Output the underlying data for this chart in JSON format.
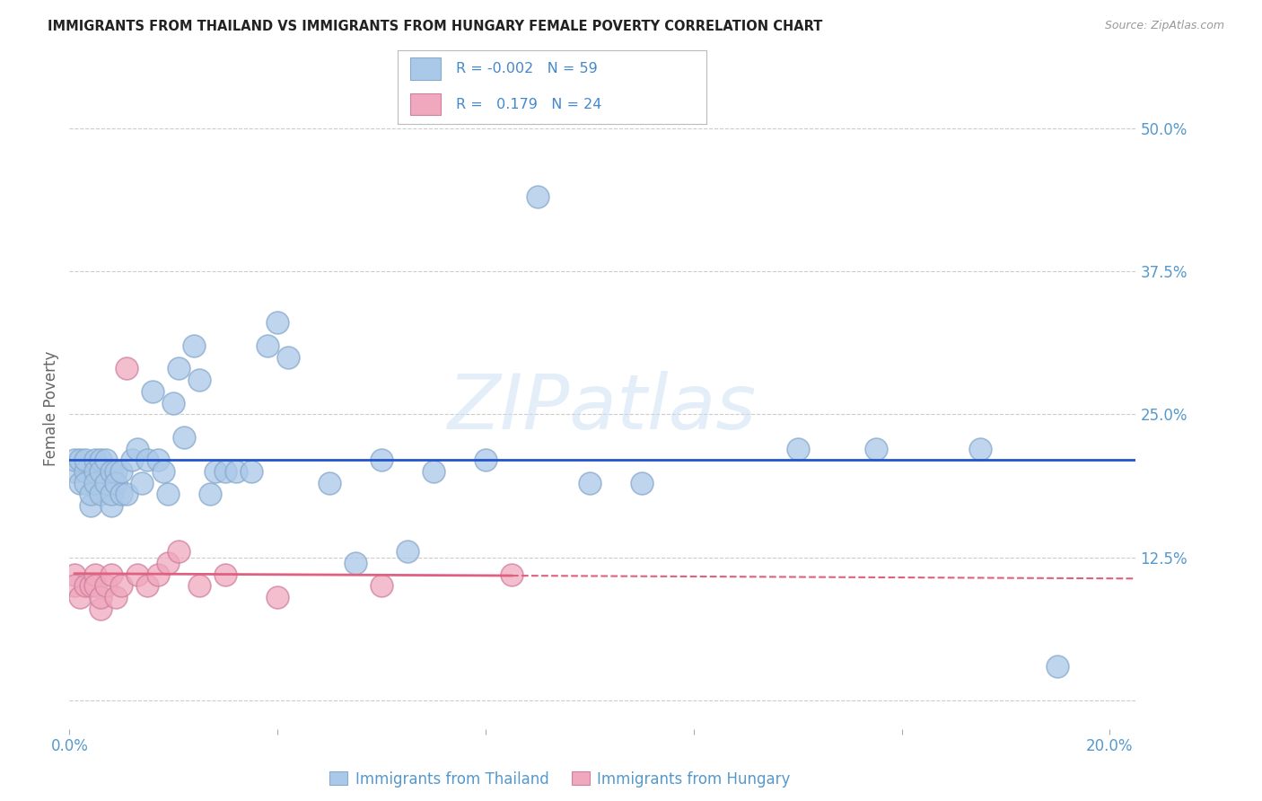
{
  "title": "IMMIGRANTS FROM THAILAND VS IMMIGRANTS FROM HUNGARY FEMALE POVERTY CORRELATION CHART",
  "source": "Source: ZipAtlas.com",
  "ylabel": "Female Poverty",
  "xlim": [
    0.0,
    0.205
  ],
  "ylim": [
    -0.025,
    0.535
  ],
  "yticks": [
    0.0,
    0.125,
    0.25,
    0.375,
    0.5
  ],
  "ytick_labels": [
    "",
    "12.5%",
    "25.0%",
    "37.5%",
    "50.0%"
  ],
  "xticks": [
    0.0,
    0.04,
    0.08,
    0.12,
    0.16,
    0.2
  ],
  "xtick_labels": [
    "0.0%",
    "",
    "",
    "",
    "",
    "20.0%"
  ],
  "thailand_color": "#aac8e8",
  "thailand_edge": "#88aacc",
  "hungary_color": "#f0a8be",
  "hungary_edge": "#d080a0",
  "trend_thailand_color": "#2255cc",
  "trend_hungary_color": "#e06080",
  "background_color": "#ffffff",
  "grid_color": "#cccccc",
  "tick_label_color": "#5599cc",
  "title_color": "#222222",
  "source_color": "#999999",
  "watermark_color": "#cde0f5",
  "legend_text_color": "#4488cc",
  "legend_r_color": "#cc3366",
  "bottom_legend_th": "Immigrants from Thailand",
  "bottom_legend_hu": "Immigrants from Hungary",
  "thailand_x": [
    0.001,
    0.001,
    0.002,
    0.002,
    0.003,
    0.003,
    0.003,
    0.004,
    0.004,
    0.005,
    0.005,
    0.005,
    0.006,
    0.006,
    0.006,
    0.007,
    0.007,
    0.008,
    0.008,
    0.008,
    0.009,
    0.009,
    0.01,
    0.01,
    0.011,
    0.012,
    0.013,
    0.014,
    0.015,
    0.016,
    0.017,
    0.018,
    0.019,
    0.02,
    0.021,
    0.022,
    0.024,
    0.025,
    0.027,
    0.028,
    0.03,
    0.032,
    0.035,
    0.038,
    0.04,
    0.042,
    0.05,
    0.055,
    0.06,
    0.065,
    0.07,
    0.08,
    0.09,
    0.1,
    0.11,
    0.14,
    0.155,
    0.175,
    0.19
  ],
  "thailand_y": [
    0.2,
    0.21,
    0.19,
    0.21,
    0.2,
    0.21,
    0.19,
    0.17,
    0.18,
    0.21,
    0.2,
    0.19,
    0.21,
    0.18,
    0.2,
    0.19,
    0.21,
    0.2,
    0.17,
    0.18,
    0.2,
    0.19,
    0.18,
    0.2,
    0.18,
    0.21,
    0.22,
    0.19,
    0.21,
    0.27,
    0.21,
    0.2,
    0.18,
    0.26,
    0.29,
    0.23,
    0.31,
    0.28,
    0.18,
    0.2,
    0.2,
    0.2,
    0.2,
    0.31,
    0.33,
    0.3,
    0.19,
    0.12,
    0.21,
    0.13,
    0.2,
    0.21,
    0.44,
    0.19,
    0.19,
    0.22,
    0.22,
    0.22,
    0.03
  ],
  "hungary_x": [
    0.001,
    0.001,
    0.002,
    0.003,
    0.004,
    0.005,
    0.005,
    0.006,
    0.006,
    0.007,
    0.008,
    0.009,
    0.01,
    0.011,
    0.013,
    0.015,
    0.017,
    0.019,
    0.021,
    0.025,
    0.03,
    0.04,
    0.06,
    0.085
  ],
  "hungary_y": [
    0.11,
    0.1,
    0.09,
    0.1,
    0.1,
    0.11,
    0.1,
    0.08,
    0.09,
    0.1,
    0.11,
    0.09,
    0.1,
    0.29,
    0.11,
    0.1,
    0.11,
    0.12,
    0.13,
    0.1,
    0.11,
    0.09,
    0.1,
    0.11
  ]
}
